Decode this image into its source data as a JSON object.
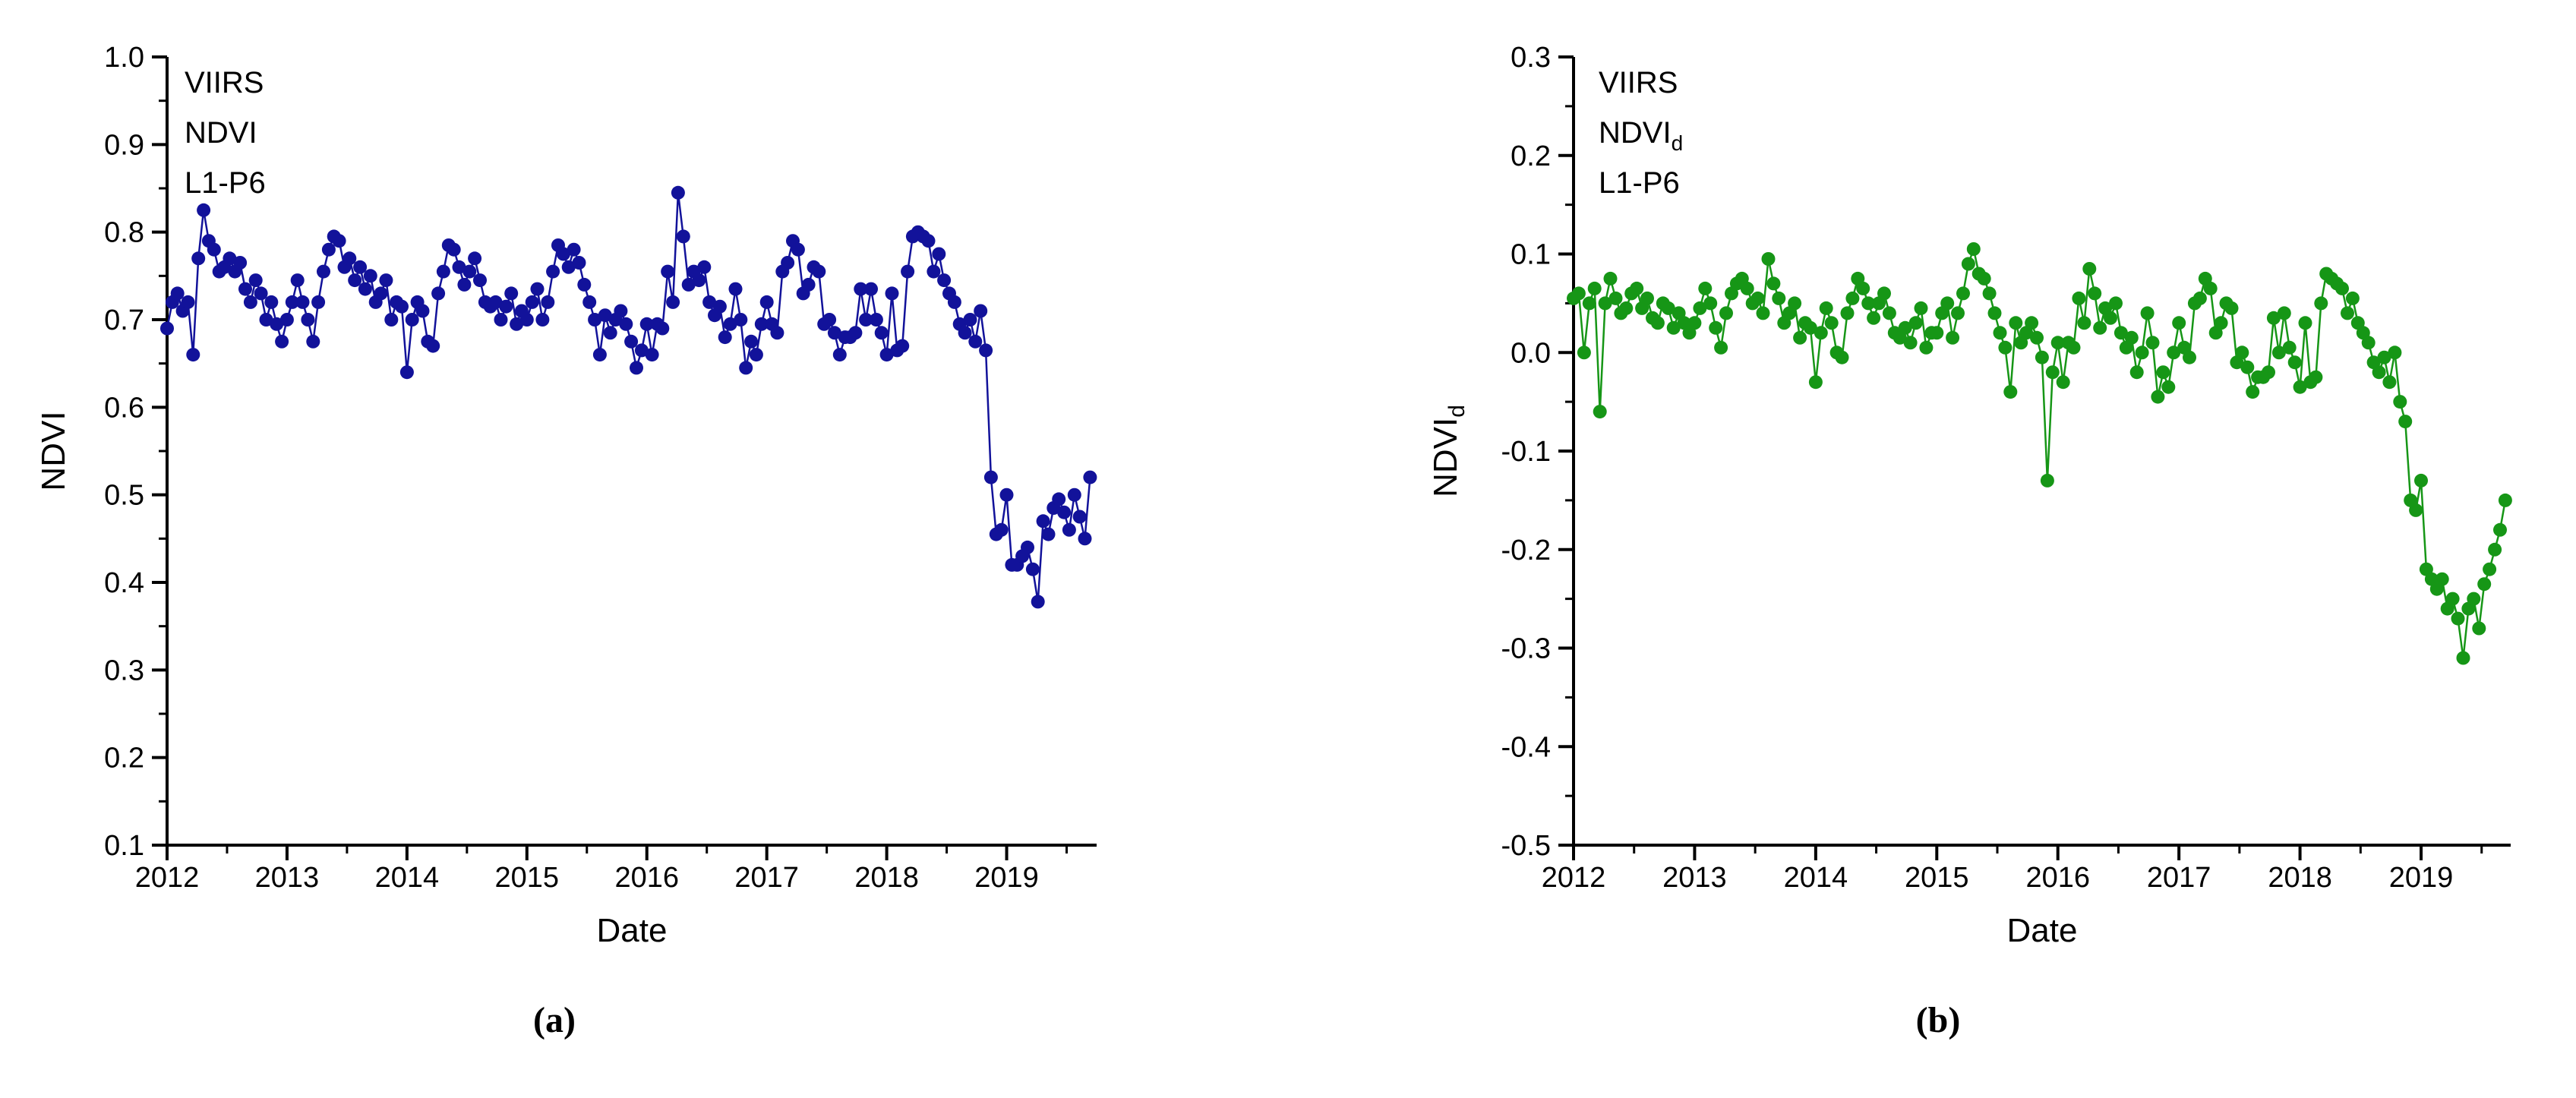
{
  "page": {
    "background": "#ffffff"
  },
  "chart_data": [
    {
      "id": "a",
      "type": "line",
      "caption": "(a)",
      "annotation": [
        {
          "text": "VIIRS"
        },
        {
          "text": "NDVI"
        },
        {
          "text": "L1-P6"
        }
      ],
      "xlabel": "Date",
      "ylabel": {
        "text": "NDVI"
      },
      "xlim": [
        2012,
        2019.75
      ],
      "ylim": [
        0.1,
        1.0
      ],
      "grid": false,
      "legend": "none",
      "x_major_ticks": [
        2012,
        2013,
        2014,
        2015,
        2016,
        2017,
        2018,
        2019
      ],
      "x_tick_labels": [
        "2012",
        "2013",
        "2014",
        "2015",
        "2016",
        "2017",
        "2018",
        "2019"
      ],
      "y_major_ticks": [
        0.1,
        0.2,
        0.3,
        0.4,
        0.5,
        0.6,
        0.7,
        0.8,
        0.9,
        1.0
      ],
      "y_tick_labels": [
        "0.1",
        "0.2",
        "0.3",
        "0.4",
        "0.5",
        "0.6",
        "0.7",
        "0.8",
        "0.9",
        "1.0"
      ],
      "color": "#12129a",
      "marker_radius": 9,
      "x_start": 2012.0,
      "x_step": 0.043478,
      "values": [
        0.69,
        0.72,
        0.73,
        0.71,
        0.72,
        0.66,
        0.77,
        0.825,
        0.79,
        0.78,
        0.755,
        0.76,
        0.77,
        0.755,
        0.765,
        0.735,
        0.72,
        0.745,
        0.73,
        0.7,
        0.72,
        0.695,
        0.675,
        0.7,
        0.72,
        0.745,
        0.72,
        0.7,
        0.675,
        0.72,
        0.755,
        0.78,
        0.795,
        0.79,
        0.76,
        0.77,
        0.745,
        0.76,
        0.735,
        0.75,
        0.72,
        0.73,
        0.745,
        0.7,
        0.72,
        0.715,
        0.64,
        0.7,
        0.72,
        0.71,
        0.675,
        0.67,
        0.73,
        0.755,
        0.785,
        0.78,
        0.76,
        0.74,
        0.755,
        0.77,
        0.745,
        0.72,
        0.715,
        0.72,
        0.7,
        0.715,
        0.73,
        0.695,
        0.71,
        0.7,
        0.72,
        0.735,
        0.7,
        0.72,
        0.755,
        0.785,
        0.775,
        0.76,
        0.78,
        0.765,
        0.74,
        0.72,
        0.7,
        0.66,
        0.705,
        0.685,
        0.7,
        0.71,
        0.695,
        0.675,
        0.645,
        0.665,
        0.695,
        0.66,
        0.695,
        0.69,
        0.755,
        0.72,
        0.845,
        0.795,
        0.74,
        0.755,
        0.745,
        0.76,
        0.72,
        0.705,
        0.715,
        0.68,
        0.695,
        0.735,
        0.7,
        0.645,
        0.675,
        0.66,
        0.695,
        0.72,
        0.695,
        0.685,
        0.755,
        0.765,
        0.79,
        0.78,
        0.73,
        0.74,
        0.76,
        0.755,
        0.695,
        0.7,
        0.685,
        0.66,
        0.68,
        0.68,
        0.685,
        0.735,
        0.7,
        0.735,
        0.7,
        0.685,
        0.66,
        0.73,
        0.665,
        0.67,
        0.755,
        0.795,
        0.8,
        0.795,
        0.79,
        0.755,
        0.775,
        0.745,
        0.73,
        0.72,
        0.695,
        0.685,
        0.7,
        0.675,
        0.71,
        0.665,
        0.52,
        0.455,
        0.46,
        0.5,
        0.42,
        0.42,
        0.43,
        0.44,
        0.415,
        0.378,
        0.47,
        0.455,
        0.485,
        0.495,
        0.48,
        0.46,
        0.5,
        0.475,
        0.45,
        0.52
      ]
    },
    {
      "id": "b",
      "type": "line",
      "caption": "(b)",
      "annotation": [
        {
          "text": "VIIRS"
        },
        {
          "text": "NDVI",
          "sub": "d"
        },
        {
          "text": "L1-P6"
        }
      ],
      "xlabel": "Date",
      "ylabel": {
        "text": "NDVI",
        "sub": "d"
      },
      "xlim": [
        2012,
        2019.74
      ],
      "ylim": [
        -0.5,
        0.3
      ],
      "grid": false,
      "legend": "none",
      "x_major_ticks": [
        2012,
        2013,
        2014,
        2015,
        2016,
        2017,
        2018,
        2019
      ],
      "x_tick_labels": [
        "2012",
        "2013",
        "2014",
        "2015",
        "2016",
        "2017",
        "2018",
        "2019"
      ],
      "y_major_ticks": [
        -0.5,
        -0.4,
        -0.3,
        -0.2,
        -0.1,
        0.0,
        0.1,
        0.2,
        0.3
      ],
      "y_tick_labels": [
        "-0.5",
        "-0.4",
        "-0.3",
        "-0.2",
        "-0.1",
        "0.0",
        "0.1",
        "0.2",
        "0.3"
      ],
      "color": "#169616",
      "marker_radius": 9,
      "x_start": 2012.0,
      "x_step": 0.043478,
      "values": [
        0.055,
        0.06,
        0,
        0.05,
        0.065,
        -0.06,
        0.05,
        0.075,
        0.055,
        0.04,
        0.045,
        0.06,
        0.065,
        0.045,
        0.055,
        0.035,
        0.03,
        0.05,
        0.045,
        0.025,
        0.04,
        0.03,
        0.02,
        0.03,
        0.045,
        0.065,
        0.05,
        0.025,
        0.005,
        0.04,
        0.06,
        0.07,
        0.075,
        0.065,
        0.05,
        0.055,
        0.04,
        0.095,
        0.07,
        0.055,
        0.03,
        0.04,
        0.05,
        0.015,
        0.03,
        0.025,
        -0.03,
        0.02,
        0.045,
        0.03,
        0,
        -0.005,
        0.04,
        0.055,
        0.075,
        0.065,
        0.05,
        0.035,
        0.05,
        0.06,
        0.04,
        0.02,
        0.015,
        0.025,
        0.01,
        0.03,
        0.045,
        0.005,
        0.02,
        0.02,
        0.04,
        0.05,
        0.015,
        0.04,
        0.06,
        0.09,
        0.105,
        0.08,
        0.075,
        0.06,
        0.04,
        0.02,
        0.005,
        -0.04,
        0.03,
        0.01,
        0.02,
        0.03,
        0.015,
        -0.005,
        -0.13,
        -0.02,
        0.01,
        -0.03,
        0.01,
        0.005,
        0.055,
        0.03,
        0.085,
        0.06,
        0.025,
        0.045,
        0.035,
        0.05,
        0.02,
        0.005,
        0.015,
        -0.02,
        0,
        0.04,
        0.01,
        -0.045,
        -0.02,
        -0.035,
        0,
        0.03,
        0.005,
        -0.005,
        0.05,
        0.055,
        0.075,
        0.065,
        0.02,
        0.03,
        0.05,
        0.045,
        -0.01,
        0,
        -0.015,
        -0.04,
        -0.025,
        -0.025,
        -0.02,
        0.035,
        0,
        0.04,
        0.005,
        -0.01,
        -0.035,
        0.03,
        -0.03,
        -0.025,
        0.05,
        0.08,
        0.075,
        0.07,
        0.065,
        0.04,
        0.055,
        0.03,
        0.02,
        0.01,
        -0.01,
        -0.02,
        -0.005,
        -0.03,
        0,
        -0.05,
        -0.07,
        -0.15,
        -0.16,
        -0.13,
        -0.22,
        -0.23,
        -0.24,
        -0.23,
        -0.26,
        -0.25,
        -0.27,
        -0.31,
        -0.26,
        -0.25,
        -0.28,
        -0.235,
        -0.22,
        -0.2,
        -0.18,
        -0.15
      ]
    }
  ]
}
